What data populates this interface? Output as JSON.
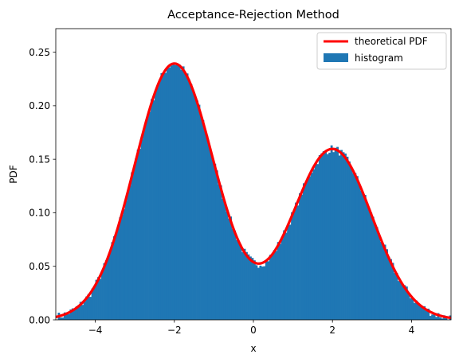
{
  "chart_data": {
    "type": "bar",
    "title": "Acceptance-Rejection Method",
    "xlabel": "x",
    "ylabel": "PDF",
    "xlim": [
      -5,
      5
    ],
    "ylim": [
      0,
      0.272
    ],
    "xticks": [
      -4,
      -2,
      0,
      2,
      4
    ],
    "xtick_labels": [
      "−4",
      "−2",
      "0",
      "2",
      "4"
    ],
    "yticks": [
      0.0,
      0.05,
      0.1,
      0.15,
      0.2,
      0.25
    ],
    "ytick_labels": [
      "0.00",
      "0.05",
      "0.10",
      "0.15",
      "0.20",
      "0.25"
    ],
    "legend_position": "top-right",
    "grid": false,
    "series": [
      {
        "name": "theoretical PDF",
        "kind": "line",
        "color": "#ff0000",
        "components": [
          {
            "weight": 0.6,
            "mean": -2,
            "sd": 1
          },
          {
            "weight": 0.4,
            "mean": 2,
            "sd": 1
          }
        ]
      },
      {
        "name": "histogram",
        "kind": "bar",
        "color": "#1f77b4",
        "bins": 200,
        "bin_range": [
          -5,
          5
        ],
        "noise_amplitude": 0.004
      }
    ]
  }
}
